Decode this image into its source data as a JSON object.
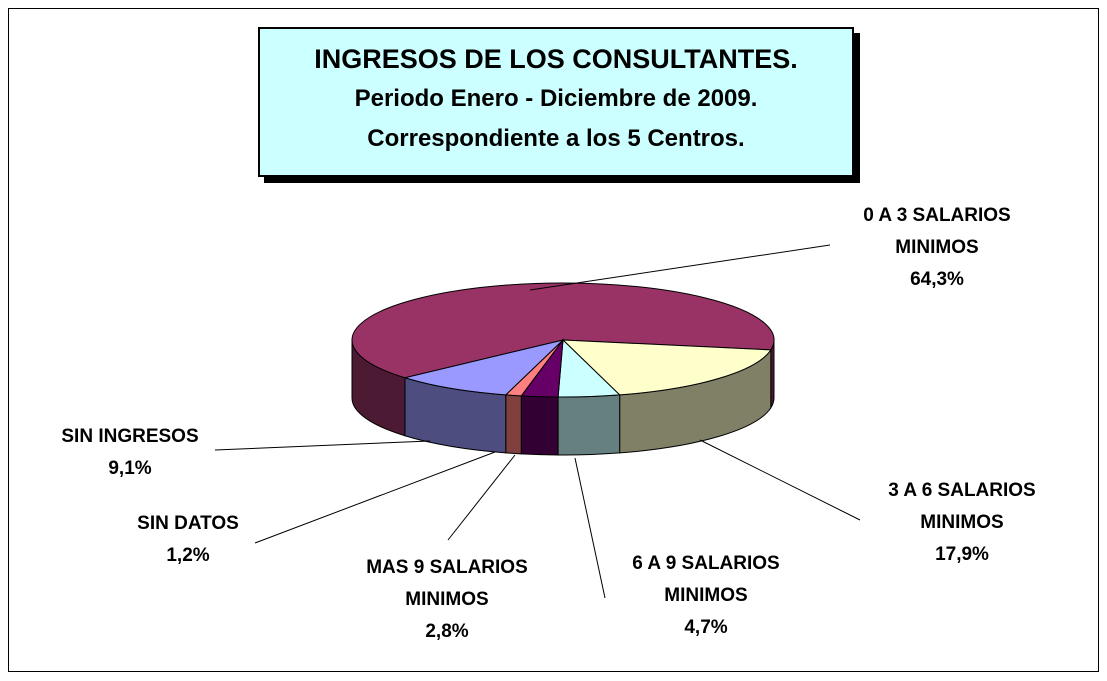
{
  "chart_data": {
    "type": "pie3d",
    "title": "INGRESOS DE LOS CONSULTANTES.",
    "subtitle": [
      "Periodo Enero - Diciembre de 2009.",
      "Correspondiente a los 5 Centros."
    ],
    "categories": [
      "0 A 3 SALARIOS MINIMOS",
      "3 A 6 SALARIOS MINIMOS",
      "6 A 9 SALARIOS MINIMOS",
      "MAS 9 SALARIOS MINIMOS",
      "SIN DATOS",
      "SIN INGRESOS"
    ],
    "values": [
      64.3,
      17.9,
      4.7,
      2.8,
      1.2,
      9.1
    ],
    "value_labels": [
      "64,3%",
      "17,9%",
      "4,7%",
      "2,8%",
      "1,2%",
      "9,1%"
    ],
    "colors": [
      "#993366",
      "#ffffcc",
      "#ccffff",
      "#660066",
      "#ff8080",
      "#9999ff"
    ]
  }
}
